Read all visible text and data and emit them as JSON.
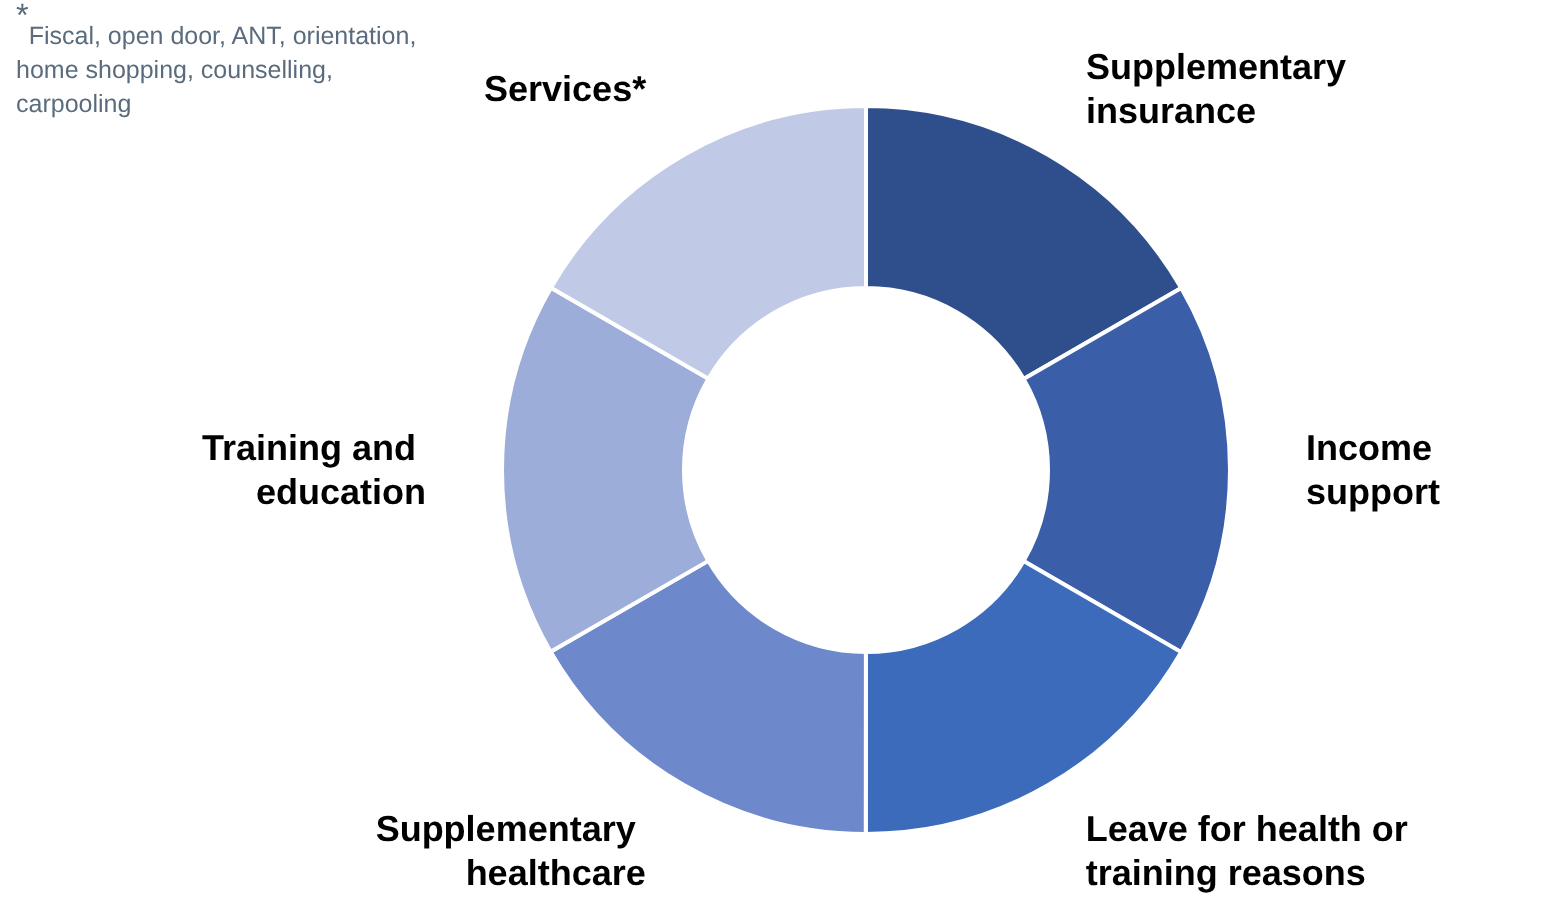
{
  "chart_data": {
    "type": "donut",
    "categories": [
      "Supplementary insurance",
      "Income support",
      "Leave for health or training reasons",
      "Supplementary healthcare",
      "Training and education",
      "Services*"
    ],
    "values": [
      16.67,
      16.67,
      16.67,
      16.67,
      16.67,
      16.65
    ],
    "colors": [
      "#2f4f8c",
      "#3a5ea8",
      "#3d6bbb",
      "#6e88cc",
      "#9dadd9",
      "#c0c9e6"
    ],
    "annotations": [
      "$^{*}$Fiscal, open door, ANT, orientation, home shopping, counselling, carpooling"
    ]
  }
}
